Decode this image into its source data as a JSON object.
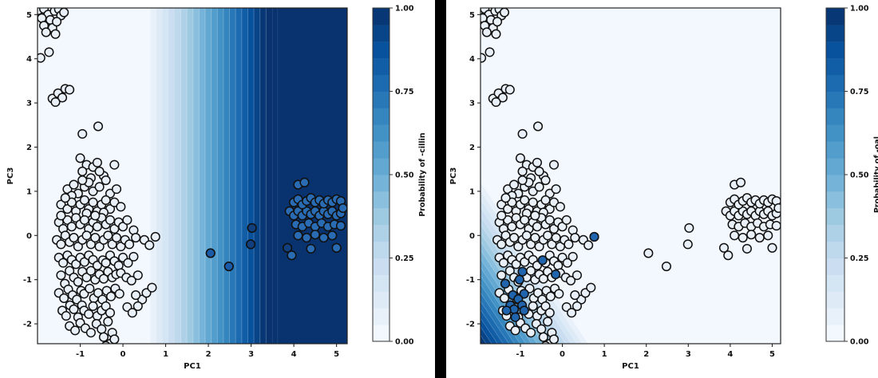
{
  "chart_data": {
    "type": "scatter",
    "description": "Two PCA scatter plots (PC1 vs PC3) with classifier probability decision surfaces (Blues colormap) and colorbars",
    "colormap": [
      "#f7fbff",
      "#deebf7",
      "#c6dbef",
      "#9ecae1",
      "#6baed6",
      "#4292c6",
      "#2171b5",
      "#08519c",
      "#08306b"
    ],
    "marker": {
      "fill": "#e9f0f8",
      "edge": "#111111"
    },
    "axis_color": "#222222",
    "shared_points": [
      [
        -1.98,
        5.1
      ],
      [
        -1.85,
        5.13
      ],
      [
        -1.75,
        5.0
      ],
      [
        -1.9,
        4.92
      ],
      [
        -1.7,
        4.88
      ],
      [
        -1.6,
        5.08
      ],
      [
        -1.5,
        5.12
      ],
      [
        -1.45,
        4.98
      ],
      [
        -1.85,
        4.75
      ],
      [
        -1.65,
        4.7
      ],
      [
        -1.55,
        4.84
      ],
      [
        -1.38,
        5.05
      ],
      [
        -1.8,
        4.6
      ],
      [
        -1.58,
        4.56
      ],
      [
        -1.93,
        4.02
      ],
      [
        -1.73,
        4.15
      ],
      [
        -1.65,
        3.1
      ],
      [
        -1.52,
        3.22
      ],
      [
        -1.42,
        3.12
      ],
      [
        -1.35,
        3.32
      ],
      [
        -1.25,
        3.3
      ],
      [
        -1.58,
        3.02
      ],
      [
        -0.95,
        2.3
      ],
      [
        -0.58,
        2.47
      ],
      [
        -1.0,
        1.75
      ],
      [
        -0.85,
        1.6
      ],
      [
        -0.95,
        1.45
      ],
      [
        -0.7,
        1.55
      ],
      [
        -0.6,
        1.65
      ],
      [
        -0.45,
        1.35
      ],
      [
        -0.2,
        1.6
      ],
      [
        -0.75,
        1.3
      ],
      [
        -0.55,
        1.45
      ],
      [
        -1.3,
        1.05
      ],
      [
        -1.15,
        1.15
      ],
      [
        -1.05,
        0.95
      ],
      [
        -0.9,
        1.1
      ],
      [
        -0.8,
        1.2
      ],
      [
        -0.7,
        1.0
      ],
      [
        -0.55,
        1.1
      ],
      [
        -0.4,
        1.25
      ],
      [
        -0.3,
        0.95
      ],
      [
        -1.2,
        0.9
      ],
      [
        -0.95,
        1.25
      ],
      [
        -0.15,
        1.05
      ],
      [
        -1.45,
        0.7
      ],
      [
        -1.3,
        0.6
      ],
      [
        -1.2,
        0.75
      ],
      [
        -1.1,
        0.55
      ],
      [
        -1.0,
        0.7
      ],
      [
        -0.9,
        0.8
      ],
      [
        -0.8,
        0.6
      ],
      [
        -0.7,
        0.75
      ],
      [
        -0.6,
        0.55
      ],
      [
        -0.5,
        0.7
      ],
      [
        -0.4,
        0.8
      ],
      [
        -0.3,
        0.6
      ],
      [
        -0.2,
        0.75
      ],
      [
        -0.05,
        0.65
      ],
      [
        -1.35,
        0.85
      ],
      [
        -0.85,
        0.5
      ],
      [
        -0.45,
        0.52
      ],
      [
        -1.5,
        0.3
      ],
      [
        -1.4,
        0.15
      ],
      [
        -1.3,
        0.35
      ],
      [
        -1.2,
        0.2
      ],
      [
        -1.1,
        0.4
      ],
      [
        -1.0,
        0.25
      ],
      [
        -0.9,
        0.35
      ],
      [
        -0.8,
        0.15
      ],
      [
        -0.7,
        0.3
      ],
      [
        -0.6,
        0.2
      ],
      [
        -0.5,
        0.4
      ],
      [
        -0.4,
        0.25
      ],
      [
        -0.3,
        0.35
      ],
      [
        -0.2,
        0.15
      ],
      [
        -0.1,
        0.3
      ],
      [
        0.0,
        0.2
      ],
      [
        0.1,
        0.35
      ],
      [
        0.25,
        0.12
      ],
      [
        -1.45,
        0.45
      ],
      [
        -0.65,
        0.45
      ],
      [
        -1.55,
        -0.1
      ],
      [
        -1.45,
        -0.2
      ],
      [
        -1.35,
        0.0
      ],
      [
        -1.25,
        -0.15
      ],
      [
        -1.15,
        -0.05
      ],
      [
        -1.05,
        -0.25
      ],
      [
        -0.95,
        -0.1
      ],
      [
        -0.85,
        0.0
      ],
      [
        -0.75,
        -0.2
      ],
      [
        -0.65,
        -0.05
      ],
      [
        -0.55,
        -0.25
      ],
      [
        -0.45,
        -0.1
      ],
      [
        -0.35,
        0.0
      ],
      [
        -0.25,
        -0.2
      ],
      [
        -0.15,
        -0.05
      ],
      [
        -0.05,
        -0.25
      ],
      [
        0.05,
        -0.1
      ],
      [
        0.15,
        -0.2
      ],
      [
        0.3,
        -0.05
      ],
      [
        0.5,
        -0.1
      ],
      [
        0.62,
        -0.22
      ],
      [
        0.76,
        -0.03
      ],
      [
        -1.5,
        -0.5
      ],
      [
        -1.4,
        -0.62
      ],
      [
        -1.3,
        -0.45
      ],
      [
        -1.2,
        -0.55
      ],
      [
        -1.1,
        -0.65
      ],
      [
        -1.0,
        -0.5
      ],
      [
        -0.9,
        -0.6
      ],
      [
        -0.8,
        -0.45
      ],
      [
        -0.7,
        -0.55
      ],
      [
        -0.6,
        -0.68
      ],
      [
        -0.47,
        -0.56
      ],
      [
        -0.4,
        -0.62
      ],
      [
        -0.3,
        -0.45
      ],
      [
        -0.2,
        -0.58
      ],
      [
        -0.1,
        -0.68
      ],
      [
        0.0,
        -0.5
      ],
      [
        0.12,
        -0.62
      ],
      [
        0.25,
        -0.48
      ],
      [
        -1.45,
        -0.9
      ],
      [
        -1.36,
        -1.09
      ],
      [
        -1.25,
        -0.8
      ],
      [
        -1.15,
        -0.95
      ],
      [
        -1.05,
        -1.05
      ],
      [
        -0.95,
        -0.82
      ],
      [
        -0.85,
        -0.95
      ],
      [
        -0.75,
        -0.8
      ],
      [
        -0.65,
        -1.0
      ],
      [
        -0.55,
        -0.88
      ],
      [
        -0.45,
        -0.98
      ],
      [
        -0.35,
        -0.82
      ],
      [
        -0.25,
        -0.95
      ],
      [
        -0.16,
        -0.88
      ],
      [
        -0.05,
        -0.85
      ],
      [
        0.08,
        -0.95
      ],
      [
        0.2,
        -1.02
      ],
      [
        0.35,
        -0.9
      ],
      [
        -1.5,
        -1.3
      ],
      [
        -1.38,
        -1.42
      ],
      [
        -1.28,
        -1.22
      ],
      [
        -1.18,
        -1.35
      ],
      [
        -1.08,
        -1.45
      ],
      [
        -0.98,
        -1.25
      ],
      [
        -0.91,
        -1.32
      ],
      [
        -0.78,
        -1.2
      ],
      [
        -0.68,
        -1.42
      ],
      [
        -0.58,
        -1.3
      ],
      [
        -0.48,
        -1.45
      ],
      [
        -0.38,
        -1.25
      ],
      [
        -0.28,
        -1.38
      ],
      [
        -0.18,
        -1.2
      ],
      [
        -0.08,
        -1.32
      ],
      [
        0.45,
        -1.45
      ],
      [
        0.55,
        -1.3
      ],
      [
        0.68,
        -1.18
      ],
      [
        0.3,
        -1.35
      ],
      [
        -1.42,
        -1.7
      ],
      [
        -1.33,
        -1.82
      ],
      [
        -1.24,
        -1.58
      ],
      [
        -1.15,
        -1.67
      ],
      [
        -1.05,
        -1.85
      ],
      [
        -0.96,
        -1.58
      ],
      [
        -0.91,
        -1.7
      ],
      [
        -0.8,
        -1.78
      ],
      [
        -0.7,
        -1.6
      ],
      [
        -0.6,
        -1.82
      ],
      [
        -0.5,
        -1.7
      ],
      [
        -0.4,
        -1.6
      ],
      [
        -0.3,
        -1.75
      ],
      [
        0.1,
        -1.62
      ],
      [
        0.22,
        -1.75
      ],
      [
        0.35,
        -1.6
      ],
      [
        -1.25,
        -2.05
      ],
      [
        -1.12,
        -2.15
      ],
      [
        -1.0,
        -1.98
      ],
      [
        -0.88,
        -2.1
      ],
      [
        -0.75,
        -2.2
      ],
      [
        -0.62,
        -2.0
      ],
      [
        -0.5,
        -2.12
      ],
      [
        -0.35,
        -1.95
      ],
      [
        -0.25,
        -2.2
      ],
      [
        -0.45,
        -2.3
      ],
      [
        -0.3,
        -2.45
      ],
      [
        -0.2,
        -2.35
      ],
      [
        -0.15,
        -2.55
      ],
      [
        -0.4,
        -2.5
      ],
      [
        2.05,
        -0.4
      ],
      [
        2.48,
        -0.7
      ],
      [
        3.02,
        0.17
      ],
      [
        2.99,
        -0.2
      ],
      [
        3.85,
        -0.28
      ],
      [
        3.9,
        0.55
      ],
      [
        4.0,
        0.45
      ],
      [
        4.1,
        0.55
      ],
      [
        4.2,
        0.45
      ],
      [
        4.3,
        0.55
      ],
      [
        4.4,
        0.48
      ],
      [
        4.5,
        0.55
      ],
      [
        4.6,
        0.45
      ],
      [
        4.7,
        0.55
      ],
      [
        4.8,
        0.48
      ],
      [
        4.9,
        0.55
      ],
      [
        5.0,
        0.45
      ],
      [
        5.1,
        0.5
      ],
      [
        4.0,
        0.75
      ],
      [
        4.1,
        0.82
      ],
      [
        4.2,
        0.7
      ],
      [
        4.3,
        0.78
      ],
      [
        4.4,
        0.85
      ],
      [
        4.5,
        0.75
      ],
      [
        4.6,
        0.8
      ],
      [
        4.7,
        0.72
      ],
      [
        4.8,
        0.8
      ],
      [
        4.9,
        0.75
      ],
      [
        5.0,
        0.82
      ],
      [
        5.1,
        0.78
      ],
      [
        5.15,
        0.62
      ],
      [
        4.05,
        0.25
      ],
      [
        4.2,
        0.2
      ],
      [
        4.35,
        0.28
      ],
      [
        4.5,
        0.2
      ],
      [
        4.65,
        0.28
      ],
      [
        4.8,
        0.2
      ],
      [
        4.95,
        0.25
      ],
      [
        5.1,
        0.22
      ],
      [
        4.1,
        0.0
      ],
      [
        4.3,
        -0.05
      ],
      [
        4.5,
        0.02
      ],
      [
        4.7,
        -0.05
      ],
      [
        4.9,
        0.0
      ],
      [
        4.4,
        -0.3
      ],
      [
        5.0,
        -0.28
      ],
      [
        4.1,
        1.15
      ],
      [
        4.25,
        1.2
      ],
      [
        3.95,
        -0.45
      ]
    ],
    "panels": [
      {
        "id": "left",
        "xlabel": "PC1",
        "ylabel": "PC3",
        "x_ticks": [
          -1,
          0,
          1,
          2,
          3,
          4,
          5
        ],
        "y_ticks": [
          -2,
          -1,
          0,
          1,
          2,
          3,
          4,
          5
        ],
        "xlim": [
          -2.0,
          5.25
        ],
        "ylim": [
          -2.45,
          5.15
        ],
        "surface": {
          "type": "vertical-gradient",
          "start_x": 0.5,
          "end_x": 3.35,
          "levels": 20
        },
        "colorbar": {
          "label": "Probability of -cillin",
          "ticks": [
            "0.00",
            "0.25",
            "0.50",
            "0.75",
            "1.00"
          ],
          "tick_values": [
            0,
            0.25,
            0.5,
            0.75,
            1.0
          ]
        },
        "filled_groups": [
          {
            "color": "#2a6cb4",
            "points": [
              [
                3.9,
                0.55
              ],
              [
                4.0,
                0.45
              ],
              [
                4.1,
                0.55
              ],
              [
                4.2,
                0.45
              ],
              [
                4.3,
                0.55
              ],
              [
                4.4,
                0.48
              ],
              [
                4.5,
                0.55
              ],
              [
                4.6,
                0.45
              ],
              [
                4.7,
                0.55
              ],
              [
                4.8,
                0.48
              ],
              [
                4.9,
                0.55
              ],
              [
                5.0,
                0.45
              ],
              [
                5.1,
                0.5
              ],
              [
                4.0,
                0.75
              ],
              [
                4.1,
                0.82
              ],
              [
                4.2,
                0.7
              ],
              [
                4.3,
                0.78
              ],
              [
                4.4,
                0.85
              ],
              [
                4.5,
                0.75
              ],
              [
                4.6,
                0.8
              ],
              [
                4.7,
                0.72
              ],
              [
                4.8,
                0.8
              ],
              [
                4.9,
                0.75
              ],
              [
                5.0,
                0.82
              ],
              [
                5.1,
                0.78
              ],
              [
                5.15,
                0.62
              ],
              [
                4.05,
                0.25
              ],
              [
                4.2,
                0.2
              ],
              [
                4.35,
                0.28
              ],
              [
                4.5,
                0.2
              ],
              [
                4.65,
                0.28
              ],
              [
                4.8,
                0.2
              ],
              [
                4.95,
                0.25
              ],
              [
                5.1,
                0.22
              ],
              [
                4.1,
                0.0
              ],
              [
                4.3,
                -0.05
              ],
              [
                4.5,
                0.02
              ],
              [
                4.7,
                -0.05
              ],
              [
                4.9,
                0.0
              ],
              [
                4.4,
                -0.3
              ],
              [
                5.0,
                -0.28
              ],
              [
                4.1,
                1.15
              ],
              [
                4.25,
                1.2
              ],
              [
                3.95,
                -0.45
              ]
            ]
          },
          {
            "color": "#1a5aa6",
            "points": [
              [
                2.05,
                -0.4
              ],
              [
                2.48,
                -0.7
              ]
            ]
          },
          {
            "color": "#123f7d",
            "points": [
              [
                3.02,
                0.17
              ],
              [
                2.99,
                -0.2
              ],
              [
                3.85,
                -0.28
              ]
            ]
          }
        ]
      },
      {
        "id": "right",
        "xlabel": "PC1",
        "ylabel": "PC3",
        "x_ticks": [
          -1,
          0,
          1,
          2,
          3,
          4,
          5
        ],
        "y_ticks": [
          -2,
          -1,
          0,
          1,
          2,
          3,
          4,
          5
        ],
        "xlim": [
          -1.95,
          5.2
        ],
        "ylim": [
          -2.45,
          5.15
        ],
        "surface": {
          "type": "corner-gradient",
          "x_reach": 2.7,
          "y_reach": 3.85,
          "levels": 20
        },
        "colorbar": {
          "label": "Probability of -oal",
          "ticks": [
            "0.00",
            "0.25",
            "0.50",
            "0.75",
            "1.00"
          ],
          "tick_values": [
            0,
            0.25,
            0.5,
            0.75,
            1.0
          ]
        },
        "filled_groups": [
          {
            "color": "#1f64ad",
            "points": [
              [
                -0.95,
                -0.82
              ],
              [
                -1.02,
                -1.0
              ],
              [
                -1.36,
                -1.09
              ],
              [
                -0.91,
                -1.32
              ],
              [
                -1.18,
                -1.35
              ],
              [
                -1.05,
                -1.44
              ],
              [
                -1.24,
                -1.58
              ],
              [
                -1.15,
                -1.67
              ],
              [
                -0.96,
                -1.58
              ],
              [
                -1.33,
                -1.7
              ],
              [
                -0.91,
                -1.7
              ],
              [
                -1.12,
                -1.85
              ],
              [
                -0.47,
                -0.56
              ],
              [
                -0.16,
                -0.88
              ],
              [
                0.76,
                -0.03
              ]
            ]
          }
        ]
      }
    ]
  }
}
